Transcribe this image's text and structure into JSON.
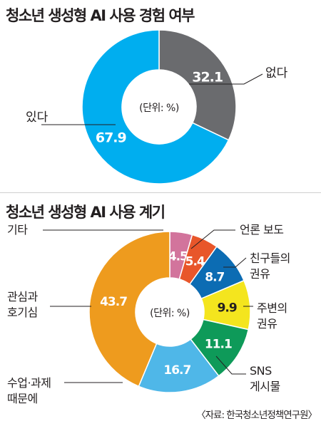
{
  "source": "〈자료: 한국청소년정책연구원〉",
  "chart_data": [
    {
      "type": "pie",
      "title": "청소년 생성형 AI 사용 경험 여부",
      "center_label": "(단위: %)",
      "categories": [
        "없다",
        "있다"
      ],
      "values": [
        32.1,
        67.9
      ],
      "value_labels": [
        "32.1",
        "67.9"
      ],
      "colors": [
        "#6a6b6e",
        "#00aeef"
      ]
    },
    {
      "type": "pie",
      "title": "청소년 생성형 AI 사용 계기",
      "center_label": "(단위: %)",
      "categories": [
        "기타",
        "언론 보도",
        "친구들의|권유",
        "주변의|권유",
        "SNS|게시물",
        "수업·과제|때문에",
        "관심과|호기심"
      ],
      "values": [
        4.5,
        5.4,
        8.7,
        9.9,
        11.1,
        16.7,
        43.7
      ],
      "value_labels": [
        "4.5",
        "5.4",
        "8.7",
        "9.9",
        "11.1",
        "16.7",
        "43.7"
      ],
      "colors": [
        "#d2749c",
        "#e8562a",
        "#0c6cb3",
        "#f4e51e",
        "#0e9a59",
        "#4fb7e8",
        "#ee9b1e"
      ]
    }
  ]
}
